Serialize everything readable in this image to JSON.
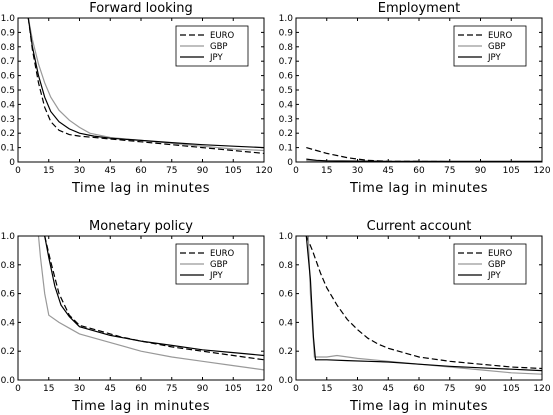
{
  "chart_data": [
    {
      "type": "line",
      "title": "Forward looking",
      "xlabel": "Time lag in minutes",
      "ylabel": "",
      "xlim": [
        0,
        120
      ],
      "ylim": [
        0,
        1
      ],
      "xticks": [
        0,
        15,
        30,
        45,
        60,
        75,
        90,
        105,
        120
      ],
      "yticks": [
        0,
        0.1,
        0.2,
        0.3,
        0.4,
        0.5,
        0.6,
        0.7,
        0.8,
        0.9,
        1.0
      ],
      "yticklabels": [
        "0",
        "0.1",
        "0.2",
        "0.3",
        "0.4",
        "0.5",
        "0.6",
        "0.7",
        "0.8",
        "0.9",
        "1.0"
      ],
      "legend_position": "top-right",
      "series": [
        {
          "name": "EURO",
          "style": "dashed",
          "color": "#000000",
          "points": [
            [
              5,
              1.0
            ],
            [
              7,
              0.78
            ],
            [
              10,
              0.55
            ],
            [
              13,
              0.38
            ],
            [
              16,
              0.28
            ],
            [
              20,
              0.22
            ],
            [
              25,
              0.19
            ],
            [
              30,
              0.18
            ],
            [
              45,
              0.16
            ],
            [
              60,
              0.14
            ],
            [
              75,
              0.12
            ],
            [
              90,
              0.1
            ],
            [
              105,
              0.08
            ],
            [
              120,
              0.06
            ]
          ]
        },
        {
          "name": "GBP",
          "style": "solid",
          "color": "#999999",
          "points": [
            [
              5,
              1.0
            ],
            [
              7,
              0.85
            ],
            [
              10,
              0.68
            ],
            [
              13,
              0.55
            ],
            [
              16,
              0.45
            ],
            [
              20,
              0.36
            ],
            [
              25,
              0.29
            ],
            [
              30,
              0.24
            ],
            [
              35,
              0.2
            ],
            [
              45,
              0.17
            ],
            [
              60,
              0.15
            ],
            [
              75,
              0.13
            ],
            [
              90,
              0.11
            ],
            [
              105,
              0.09
            ],
            [
              120,
              0.08
            ]
          ]
        },
        {
          "name": "JPY",
          "style": "solid",
          "color": "#000000",
          "points": [
            [
              5,
              1.0
            ],
            [
              7,
              0.8
            ],
            [
              10,
              0.6
            ],
            [
              13,
              0.45
            ],
            [
              16,
              0.35
            ],
            [
              20,
              0.28
            ],
            [
              25,
              0.23
            ],
            [
              30,
              0.2
            ],
            [
              37,
              0.18
            ],
            [
              45,
              0.165
            ],
            [
              60,
              0.15
            ],
            [
              75,
              0.135
            ],
            [
              90,
              0.12
            ],
            [
              105,
              0.11
            ],
            [
              120,
              0.1
            ]
          ]
        }
      ]
    },
    {
      "type": "line",
      "title": "Employment",
      "xlabel": "Time lag in minutes",
      "ylabel": "",
      "xlim": [
        0,
        120
      ],
      "ylim": [
        0,
        1
      ],
      "xticks": [
        0,
        15,
        30,
        45,
        60,
        75,
        90,
        105,
        120
      ],
      "yticks": [
        0,
        0.1,
        0.2,
        0.3,
        0.4,
        0.5,
        0.6,
        0.7,
        0.8,
        0.9,
        1.0
      ],
      "yticklabels": [
        "0",
        "0.1",
        "0.2",
        "0.3",
        "0.4",
        "0.5",
        "0.6",
        "0.7",
        "0.8",
        "0.9",
        "1.0"
      ],
      "legend_position": "top-right",
      "series": [
        {
          "name": "EURO",
          "style": "dashed",
          "color": "#000000",
          "points": [
            [
              5,
              0.1
            ],
            [
              10,
              0.08
            ],
            [
              15,
              0.06
            ],
            [
              20,
              0.045
            ],
            [
              25,
              0.03
            ],
            [
              30,
              0.02
            ],
            [
              35,
              0.012
            ],
            [
              40,
              0.008
            ],
            [
              45,
              0.005
            ],
            [
              60,
              0.004
            ],
            [
              75,
              0.003
            ],
            [
              90,
              0.003
            ],
            [
              105,
              0.003
            ],
            [
              120,
              0.003
            ]
          ]
        },
        {
          "name": "GBP",
          "style": "solid",
          "color": "#999999",
          "points": [
            [
              5,
              0.01
            ],
            [
              15,
              0.006
            ],
            [
              30,
              0.004
            ],
            [
              45,
              0.003
            ],
            [
              60,
              0.003
            ],
            [
              75,
              0.003
            ],
            [
              90,
              0.003
            ],
            [
              105,
              0.003
            ],
            [
              120,
              0.003
            ]
          ]
        },
        {
          "name": "JPY",
          "style": "solid",
          "color": "#000000",
          "points": [
            [
              5,
              0.02
            ],
            [
              10,
              0.012
            ],
            [
              15,
              0.008
            ],
            [
              30,
              0.006
            ],
            [
              45,
              0.005
            ],
            [
              60,
              0.005
            ],
            [
              75,
              0.005
            ],
            [
              90,
              0.005
            ],
            [
              105,
              0.005
            ],
            [
              120,
              0.005
            ]
          ]
        }
      ]
    },
    {
      "type": "line",
      "title": "Monetary policy",
      "xlabel": "Time lag in minutes",
      "ylabel": "",
      "xlim": [
        0,
        120
      ],
      "ylim": [
        0,
        1
      ],
      "xticks": [
        0,
        15,
        30,
        45,
        60,
        75,
        90,
        105,
        120
      ],
      "yticks": [
        0,
        0.2,
        0.4,
        0.6,
        0.8,
        1.0
      ],
      "yticklabels": [
        "0.0",
        "0.2",
        "0.4",
        "0.6",
        "0.8",
        "1.0"
      ],
      "legend_position": "top-right",
      "series": [
        {
          "name": "EURO",
          "style": "dashed",
          "color": "#000000",
          "points": [
            [
              13,
              1.0
            ],
            [
              16,
              0.82
            ],
            [
              20,
              0.6
            ],
            [
              25,
              0.45
            ],
            [
              30,
              0.38
            ],
            [
              40,
              0.34
            ],
            [
              50,
              0.3
            ],
            [
              60,
              0.27
            ],
            [
              75,
              0.23
            ],
            [
              90,
              0.2
            ],
            [
              105,
              0.17
            ],
            [
              120,
              0.14
            ]
          ]
        },
        {
          "name": "GBP",
          "style": "solid",
          "color": "#999999",
          "points": [
            [
              10,
              1.0
            ],
            [
              11,
              0.85
            ],
            [
              13,
              0.6
            ],
            [
              15,
              0.45
            ],
            [
              20,
              0.4
            ],
            [
              25,
              0.36
            ],
            [
              30,
              0.32
            ],
            [
              45,
              0.26
            ],
            [
              60,
              0.2
            ],
            [
              75,
              0.16
            ],
            [
              90,
              0.13
            ],
            [
              105,
              0.1
            ],
            [
              120,
              0.07
            ]
          ]
        },
        {
          "name": "JPY",
          "style": "solid",
          "color": "#000000",
          "points": [
            [
              13,
              1.0
            ],
            [
              15,
              0.85
            ],
            [
              18,
              0.65
            ],
            [
              21,
              0.52
            ],
            [
              25,
              0.44
            ],
            [
              30,
              0.37
            ],
            [
              45,
              0.31
            ],
            [
              60,
              0.27
            ],
            [
              75,
              0.24
            ],
            [
              90,
              0.21
            ],
            [
              105,
              0.19
            ],
            [
              120,
              0.17
            ]
          ]
        }
      ]
    },
    {
      "type": "line",
      "title": "Current account",
      "xlabel": "Time lag in minutes",
      "ylabel": "",
      "xlim": [
        0,
        120
      ],
      "ylim": [
        0,
        1
      ],
      "xticks": [
        0,
        15,
        30,
        45,
        60,
        75,
        90,
        105,
        120
      ],
      "yticks": [
        0,
        0.2,
        0.4,
        0.6,
        0.8,
        1.0
      ],
      "yticklabels": [
        "0.0",
        "0.2",
        "0.4",
        "0.6",
        "0.8",
        "1.0"
      ],
      "legend_position": "top-right",
      "series": [
        {
          "name": "EURO",
          "style": "dashed",
          "color": "#000000",
          "points": [
            [
              5,
              1.0
            ],
            [
              8,
              0.9
            ],
            [
              12,
              0.74
            ],
            [
              15,
              0.64
            ],
            [
              20,
              0.52
            ],
            [
              25,
              0.42
            ],
            [
              30,
              0.35
            ],
            [
              35,
              0.29
            ],
            [
              40,
              0.25
            ],
            [
              45,
              0.22
            ],
            [
              60,
              0.16
            ],
            [
              75,
              0.13
            ],
            [
              90,
              0.11
            ],
            [
              105,
              0.09
            ],
            [
              120,
              0.08
            ]
          ]
        },
        {
          "name": "GBP",
          "style": "solid",
          "color": "#999999",
          "points": [
            [
              6,
              1.0
            ],
            [
              7,
              0.6
            ],
            [
              9,
              0.16
            ],
            [
              15,
              0.16
            ],
            [
              20,
              0.17
            ],
            [
              30,
              0.15
            ],
            [
              45,
              0.13
            ],
            [
              60,
              0.11
            ],
            [
              75,
              0.09
            ],
            [
              90,
              0.07
            ],
            [
              105,
              0.05
            ],
            [
              120,
              0.04
            ]
          ]
        },
        {
          "name": "JPY",
          "style": "solid",
          "color": "#000000",
          "points": [
            [
              5,
              1.0
            ],
            [
              7,
              0.7
            ],
            [
              8.5,
              0.3
            ],
            [
              9.5,
              0.14
            ],
            [
              15,
              0.14
            ],
            [
              25,
              0.135
            ],
            [
              35,
              0.13
            ],
            [
              45,
              0.125
            ],
            [
              60,
              0.11
            ],
            [
              75,
              0.095
            ],
            [
              90,
              0.085
            ],
            [
              105,
              0.075
            ],
            [
              120,
              0.065
            ]
          ]
        }
      ]
    }
  ]
}
